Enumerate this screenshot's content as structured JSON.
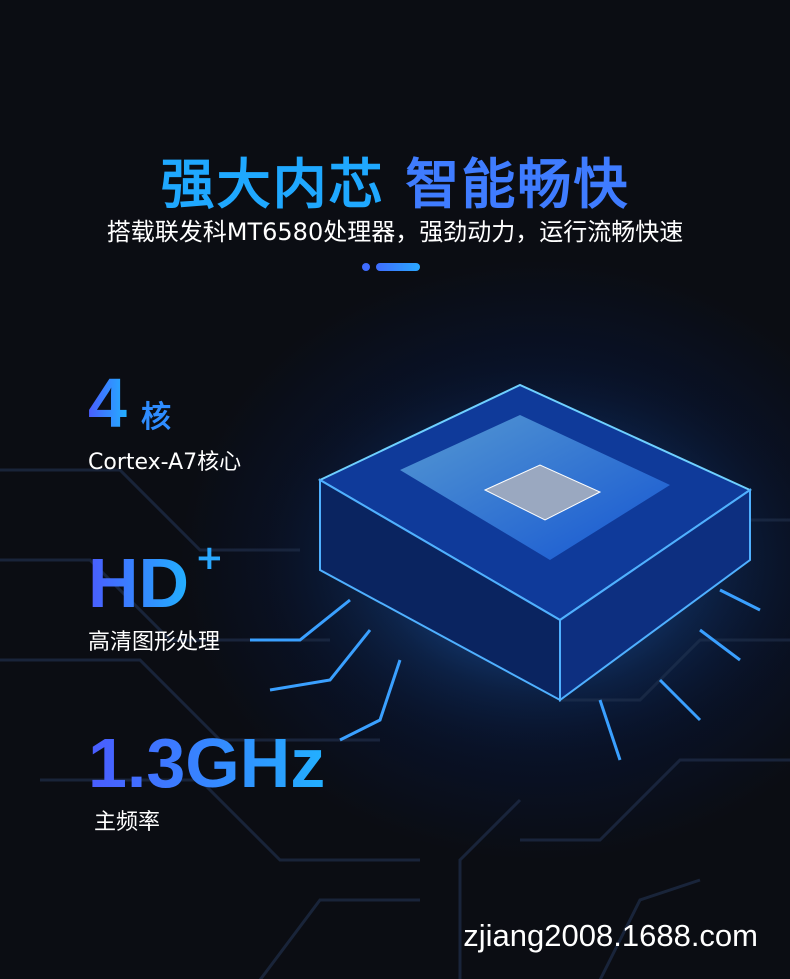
{
  "header": {
    "title_part1": "强大内芯",
    "title_part2": "智能畅快",
    "subtitle": "搭载联发科MT6580处理器，强劲动力，运行流畅快速"
  },
  "specs": [
    {
      "value": "4",
      "unit": "核",
      "desc": "Cortex-A7核心"
    },
    {
      "value": "HD",
      "unit": "+",
      "desc": "高清图形处理"
    },
    {
      "value": "1.3GHz",
      "unit": "",
      "desc": "主频率"
    }
  ],
  "watermark": "zjiang2008.1688.com",
  "colors": {
    "accent_cyan": "#1fa8ff",
    "accent_blue": "#3f7cff",
    "background": "#0b0d13"
  }
}
